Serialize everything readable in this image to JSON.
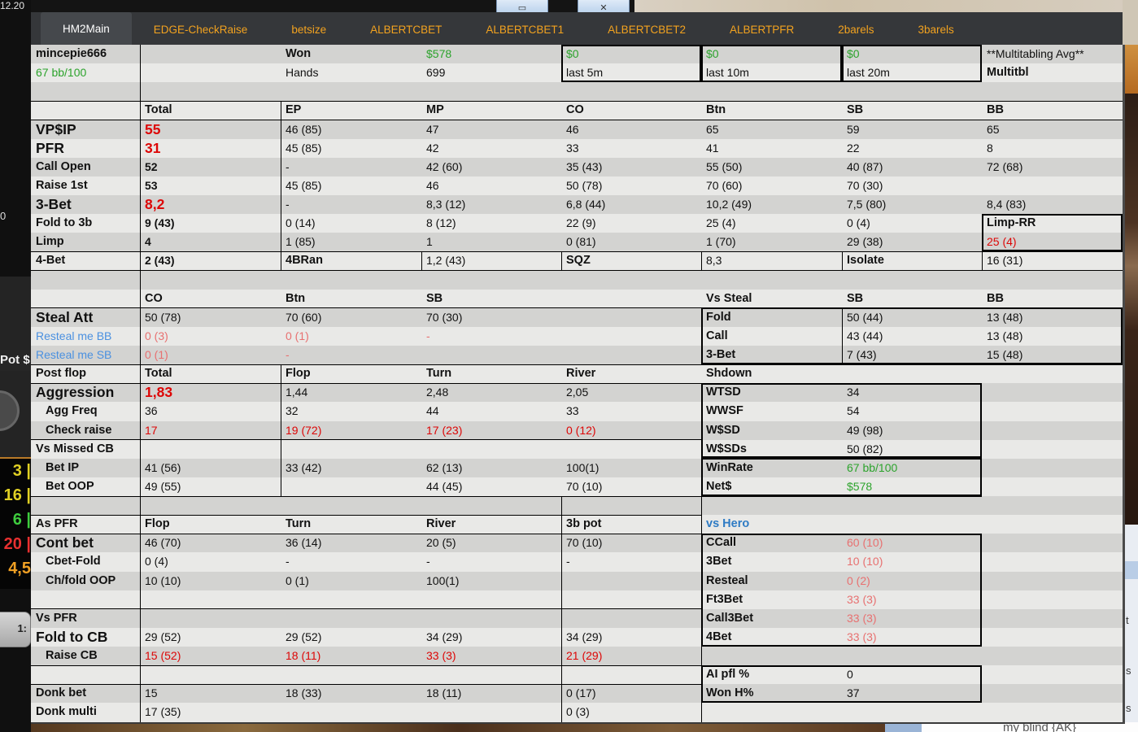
{
  "window": {
    "minimize_glyph": "▭",
    "close_glyph": "✕"
  },
  "colors": {
    "red": "#dd0606",
    "salmon": "#e87070",
    "green": "#2ca32c",
    "resteal_blue": "#4a90e0",
    "hero_blue": "#2e7bc4",
    "tab_orange": "#f2a21f",
    "tabbar_bg": "#35373a"
  },
  "tabs": [
    {
      "label": "HM2Main",
      "active": true
    },
    {
      "label": "EDGE-CheckRaise",
      "active": false
    },
    {
      "label": "betsize",
      "active": false
    },
    {
      "label": "ALBERTCBET",
      "active": false
    },
    {
      "label": "ALBERTCBET1",
      "active": false
    },
    {
      "label": "ALBERTCBET2",
      "active": false
    },
    {
      "label": "ALBERTPFR",
      "active": false
    },
    {
      "label": "2barels",
      "active": false
    },
    {
      "label": "3barels",
      "active": false
    }
  ],
  "background": {
    "clock": "12.20",
    "zero": "0",
    "pot_label": "Pot $",
    "stack_values": [
      {
        "text": "3 |",
        "color": "#e0d024"
      },
      {
        "text": "16 |",
        "color": "#e0d024"
      },
      {
        "text": "6 |",
        "color": "#3ecc3e"
      },
      {
        "text": "20 |",
        "color": "#e83030"
      },
      {
        "text": "4,5",
        "color": "#f0a024"
      }
    ],
    "seat_button": "1:",
    "note_text": "my blind {AK}",
    "side_letters": [
      "t",
      "s",
      "s"
    ]
  },
  "grid": {
    "columns": [
      134,
      173,
      173,
      172,
      172,
      173,
      172,
      173
    ],
    "rows": [
      {
        "n": "row-player-summary",
        "bg": "g",
        "cells": {
          "0": {
            "t": "mincepie666",
            "cls": "lbl",
            "n": "player-name"
          },
          "2": {
            "t": "Won",
            "cls": "lbl"
          },
          "3": {
            "t": "$578",
            "cls": "green",
            "n": "won-amount"
          },
          "4": {
            "t": "$0",
            "cls": "green",
            "n": "won-last-5m"
          },
          "5": {
            "t": "$0",
            "cls": "green",
            "n": "won-last-10m"
          },
          "6": {
            "t": "$0",
            "cls": "green",
            "n": "won-last-20m"
          },
          "7": {
            "t": "**Multitabling Avg**",
            "cls": "val"
          }
        }
      },
      {
        "n": "row-player-summary-2",
        "bg": "l",
        "cells": {
          "0": {
            "t": "67 bb/100",
            "cls": "green",
            "n": "winrate-bb100"
          },
          "2": {
            "t": "Hands",
            "cls": "val"
          },
          "3": {
            "t": "699",
            "cls": "val",
            "n": "hands-count"
          },
          "4": {
            "t": "last 5m",
            "cls": "val"
          },
          "5": {
            "t": "last 10m",
            "cls": "val"
          },
          "6": {
            "t": "last 20m",
            "cls": "val"
          },
          "7": {
            "t": "Multitbl",
            "cls": "lbl"
          }
        }
      },
      {
        "n": "row-empty",
        "bg": "g",
        "cells": {}
      },
      {
        "n": "row-position-headers",
        "bg": "l",
        "cells": {
          "1": {
            "t": "Total",
            "cls": "lbl"
          },
          "2": {
            "t": "EP",
            "cls": "lbl"
          },
          "3": {
            "t": "MP",
            "cls": "lbl"
          },
          "4": {
            "t": "CO",
            "cls": "lbl"
          },
          "5": {
            "t": "Btn",
            "cls": "lbl"
          },
          "6": {
            "t": "SB",
            "cls": "lbl"
          },
          "7": {
            "t": "BB",
            "cls": "lbl"
          }
        }
      },
      {
        "n": "row-vpip",
        "bg": "g",
        "cells": {
          "0": {
            "t": "VP$IP",
            "cls": "lbl lg"
          },
          "1": {
            "t": "55",
            "cls": "red b lg"
          },
          "2": {
            "t": "46 (85)"
          },
          "3": {
            "t": "47"
          },
          "4": {
            "t": "46"
          },
          "5": {
            "t": "65"
          },
          "6": {
            "t": "59"
          },
          "7": {
            "t": "65"
          }
        }
      },
      {
        "n": "row-pfr",
        "bg": "l",
        "cells": {
          "0": {
            "t": "PFR",
            "cls": "lbl lg"
          },
          "1": {
            "t": "31",
            "cls": "red b lg"
          },
          "2": {
            "t": "45 (85)"
          },
          "3": {
            "t": "42"
          },
          "4": {
            "t": "33"
          },
          "5": {
            "t": "41"
          },
          "6": {
            "t": "22"
          },
          "7": {
            "t": "8"
          }
        }
      },
      {
        "n": "row-call-open",
        "bg": "g",
        "cells": {
          "0": {
            "t": "Call Open",
            "cls": "lbl"
          },
          "1": {
            "t": "52",
            "cls": "b"
          },
          "2": {
            "t": "-"
          },
          "3": {
            "t": "42 (60)"
          },
          "4": {
            "t": "35 (43)"
          },
          "5": {
            "t": "55 (50)"
          },
          "6": {
            "t": "40 (87)"
          },
          "7": {
            "t": "72 (68)"
          }
        }
      },
      {
        "n": "row-raise-1st",
        "bg": "l",
        "cells": {
          "0": {
            "t": "Raise 1st",
            "cls": "lbl"
          },
          "1": {
            "t": "53",
            "cls": "b"
          },
          "2": {
            "t": "45 (85)"
          },
          "3": {
            "t": "46"
          },
          "4": {
            "t": "50 (78)"
          },
          "5": {
            "t": "70 (60)"
          },
          "6": {
            "t": "70 (30)"
          }
        }
      },
      {
        "n": "row-3bet",
        "bg": "g",
        "cells": {
          "0": {
            "t": "3-Bet",
            "cls": "lbl lg"
          },
          "1": {
            "t": "8,2",
            "cls": "red b lg"
          },
          "2": {
            "t": "-"
          },
          "3": {
            "t": "8,3 (12)"
          },
          "4": {
            "t": "6,8 (44)"
          },
          "5": {
            "t": "10,2 (49)"
          },
          "6": {
            "t": "7,5 (80)"
          },
          "7": {
            "t": "8,4 (83)"
          }
        }
      },
      {
        "n": "row-fold-to-3b",
        "bg": "l",
        "cells": {
          "0": {
            "t": "Fold to 3b",
            "cls": "lbl"
          },
          "1": {
            "t": "9 (43)",
            "cls": "b"
          },
          "2": {
            "t": "0 (14)"
          },
          "3": {
            "t": "8 (12)"
          },
          "4": {
            "t": "22 (9)"
          },
          "5": {
            "t": "25 (4)"
          },
          "6": {
            "t": "0 (4)"
          },
          "7": {
            "t": "Limp-RR",
            "cls": "lbl"
          }
        }
      },
      {
        "n": "row-limp",
        "bg": "g",
        "cells": {
          "0": {
            "t": "Limp",
            "cls": "lbl"
          },
          "1": {
            "t": "4",
            "cls": "b"
          },
          "2": {
            "t": "1 (85)"
          },
          "3": {
            "t": "1"
          },
          "4": {
            "t": "0 (81)"
          },
          "5": {
            "t": "1 (70)"
          },
          "6": {
            "t": "29 (38)"
          },
          "7": {
            "t": "25 (4)",
            "cls": "red"
          }
        }
      },
      {
        "n": "row-4bet",
        "bg": "l",
        "cells": {
          "0": {
            "t": "4-Bet",
            "cls": "lbl"
          },
          "1": {
            "t": "2 (43)",
            "cls": "b"
          },
          "2": {
            "t": "4BRan",
            "cls": "lbl"
          },
          "3": {
            "t": "1,2 (43)"
          },
          "4": {
            "t": "SQZ",
            "cls": "lbl"
          },
          "5": {
            "t": "8,3"
          },
          "6": {
            "t": "Isolate",
            "cls": "lbl"
          },
          "7": {
            "t": "16 (31)"
          }
        }
      },
      {
        "n": "row-empty",
        "bg": "g",
        "cells": {}
      },
      {
        "n": "row-steal-headers",
        "bg": "l",
        "cells": {
          "1": {
            "t": "CO",
            "cls": "lbl"
          },
          "2": {
            "t": "Btn",
            "cls": "lbl"
          },
          "3": {
            "t": "SB",
            "cls": "lbl"
          },
          "5": {
            "t": "Vs Steal",
            "cls": "lbl"
          },
          "6": {
            "t": "SB",
            "cls": "lbl"
          },
          "7": {
            "t": "BB",
            "cls": "lbl"
          }
        }
      },
      {
        "n": "row-steal-att",
        "bg": "g",
        "cells": {
          "0": {
            "t": "Steal Att",
            "cls": "lbl lg"
          },
          "1": {
            "t": "50 (78)"
          },
          "2": {
            "t": "70 (60)"
          },
          "3": {
            "t": "70 (30)"
          },
          "5": {
            "t": "Fold",
            "cls": "lbl"
          },
          "6": {
            "t": "50 (44)"
          },
          "7": {
            "t": "13 (48)"
          }
        }
      },
      {
        "n": "row-resteal-me-bb",
        "bg": "l",
        "cells": {
          "0": {
            "t": "Resteal me BB",
            "cls": "blue"
          },
          "1": {
            "t": "0 (3)",
            "cls": "salmon"
          },
          "2": {
            "t": "0 (1)",
            "cls": "salmon"
          },
          "3": {
            "t": "-",
            "cls": "salmon"
          },
          "5": {
            "t": "Call",
            "cls": "lbl"
          },
          "6": {
            "t": "43 (44)"
          },
          "7": {
            "t": "13 (48)"
          }
        }
      },
      {
        "n": "row-resteal-me-sb",
        "bg": "g",
        "cells": {
          "0": {
            "t": "Resteal me SB",
            "cls": "blue"
          },
          "1": {
            "t": "0 (1)",
            "cls": "salmon"
          },
          "2": {
            "t": "-",
            "cls": "salmon"
          },
          "5": {
            "t": "3-Bet",
            "cls": "lbl"
          },
          "6": {
            "t": "7 (43)"
          },
          "7": {
            "t": "15 (48)"
          }
        }
      },
      {
        "n": "row-postflop-headers",
        "bg": "l",
        "cells": {
          "0": {
            "t": "Post flop",
            "cls": "lbl"
          },
          "1": {
            "t": "Total",
            "cls": "lbl"
          },
          "2": {
            "t": "Flop",
            "cls": "lbl"
          },
          "3": {
            "t": "Turn",
            "cls": "lbl"
          },
          "4": {
            "t": "River",
            "cls": "lbl"
          },
          "5": {
            "t": "Shdown",
            "cls": "lbl"
          }
        }
      },
      {
        "n": "row-aggression",
        "bg": "g",
        "cells": {
          "0": {
            "t": "Aggression",
            "cls": "lbl lg"
          },
          "1": {
            "t": "1,83",
            "cls": "red b lg"
          },
          "2": {
            "t": "1,44"
          },
          "3": {
            "t": "2,48"
          },
          "4": {
            "t": "2,05"
          },
          "5": {
            "t": "WTSD",
            "cls": "lbl"
          },
          "6": {
            "t": "34"
          }
        }
      },
      {
        "n": "row-agg-freq",
        "bg": "l",
        "cells": {
          "0": {
            "t": "Agg Freq",
            "cls": "lbl ind"
          },
          "1": {
            "t": "36"
          },
          "2": {
            "t": "32"
          },
          "3": {
            "t": "44"
          },
          "4": {
            "t": "33"
          },
          "5": {
            "t": "WWSF",
            "cls": "lbl"
          },
          "6": {
            "t": "54"
          }
        }
      },
      {
        "n": "row-check-raise",
        "bg": "g",
        "cells": {
          "0": {
            "t": "Check raise",
            "cls": "lbl ind"
          },
          "1": {
            "t": "17",
            "cls": "red"
          },
          "2": {
            "t": "19 (72)",
            "cls": "red"
          },
          "3": {
            "t": "17 (23)",
            "cls": "red"
          },
          "4": {
            "t": "0 (12)",
            "cls": "red"
          },
          "5": {
            "t": "W$SD",
            "cls": "lbl"
          },
          "6": {
            "t": "49 (98)"
          }
        }
      },
      {
        "n": "row-vs-missed-cb",
        "bg": "l",
        "cells": {
          "0": {
            "t": "Vs Missed CB",
            "cls": "lbl"
          },
          "5": {
            "t": "W$SDs",
            "cls": "lbl"
          },
          "6": {
            "t": "50 (82)"
          }
        }
      },
      {
        "n": "row-bet-ip",
        "bg": "g",
        "cells": {
          "0": {
            "t": "Bet IP",
            "cls": "lbl ind"
          },
          "1": {
            "t": "41 (56)"
          },
          "2": {
            "t": "33 (42)"
          },
          "3": {
            "t": "62 (13)"
          },
          "4": {
            "t": "100(1)"
          },
          "5": {
            "t": "WinRate",
            "cls": "lbl"
          },
          "6": {
            "t": "67 bb/100",
            "cls": "green"
          }
        }
      },
      {
        "n": "row-bet-oop",
        "bg": "l",
        "cells": {
          "0": {
            "t": "Bet OOP",
            "cls": "lbl ind"
          },
          "1": {
            "t": "49 (55)"
          },
          "3": {
            "t": "44 (45)"
          },
          "4": {
            "t": "70 (10)"
          },
          "5": {
            "t": "Net$",
            "cls": "lbl"
          },
          "6": {
            "t": "$578",
            "cls": "green"
          }
        }
      },
      {
        "n": "row-empty",
        "bg": "g",
        "cells": {}
      },
      {
        "n": "row-as-pfr-headers",
        "bg": "l",
        "cells": {
          "0": {
            "t": "As PFR",
            "cls": "lbl"
          },
          "1": {
            "t": "Flop",
            "cls": "lbl"
          },
          "2": {
            "t": "Turn",
            "cls": "lbl"
          },
          "3": {
            "t": "River",
            "cls": "lbl"
          },
          "4": {
            "t": "3b pot",
            "cls": "lbl"
          },
          "5": {
            "t": "vs Hero",
            "cls": "blueb"
          }
        }
      },
      {
        "n": "row-cont-bet",
        "bg": "g",
        "cells": {
          "0": {
            "t": "Cont bet",
            "cls": "lbl lg"
          },
          "1": {
            "t": "46 (70)"
          },
          "2": {
            "t": "36 (14)"
          },
          "3": {
            "t": "20 (5)"
          },
          "4": {
            "t": "70 (10)"
          },
          "5": {
            "t": "CCall",
            "cls": "lbl"
          },
          "6": {
            "t": "60 (10)",
            "cls": "salmon"
          }
        }
      },
      {
        "n": "row-cbet-fold",
        "bg": "l",
        "cells": {
          "0": {
            "t": "Cbet-Fold",
            "cls": "lbl ind"
          },
          "1": {
            "t": "0 (4)"
          },
          "2": {
            "t": "-"
          },
          "3": {
            "t": "-"
          },
          "4": {
            "t": "-"
          },
          "5": {
            "t": "3Bet",
            "cls": "lbl"
          },
          "6": {
            "t": "10 (10)",
            "cls": "salmon"
          }
        }
      },
      {
        "n": "row-ch-fold-oop",
        "bg": "g",
        "cells": {
          "0": {
            "t": "Ch/fold OOP",
            "cls": "lbl ind"
          },
          "1": {
            "t": "10 (10)"
          },
          "2": {
            "t": "0 (1)"
          },
          "3": {
            "t": "100(1)"
          },
          "5": {
            "t": "Resteal",
            "cls": "lbl"
          },
          "6": {
            "t": "0 (2)",
            "cls": "salmon"
          }
        }
      },
      {
        "n": "row-ft3bet",
        "bg": "l",
        "cells": {
          "5": {
            "t": "Ft3Bet",
            "cls": "lbl"
          },
          "6": {
            "t": "33 (3)",
            "cls": "salmon"
          }
        }
      },
      {
        "n": "row-vs-pfr",
        "bg": "g",
        "cells": {
          "0": {
            "t": "Vs PFR",
            "cls": "lbl"
          },
          "5": {
            "t": "Call3Bet",
            "cls": "lbl"
          },
          "6": {
            "t": "33 (3)",
            "cls": "salmon"
          }
        }
      },
      {
        "n": "row-fold-to-cb",
        "bg": "l",
        "cells": {
          "0": {
            "t": "Fold to CB",
            "cls": "lbl lg"
          },
          "1": {
            "t": "29 (52)"
          },
          "2": {
            "t": "29 (52)"
          },
          "3": {
            "t": "34 (29)"
          },
          "4": {
            "t": "34 (29)"
          },
          "5": {
            "t": "4Bet",
            "cls": "lbl"
          },
          "6": {
            "t": "33 (3)",
            "cls": "salmon"
          }
        }
      },
      {
        "n": "row-raise-cb",
        "bg": "g",
        "cells": {
          "0": {
            "t": "Raise CB",
            "cls": "lbl ind"
          },
          "1": {
            "t": "15 (52)",
            "cls": "red"
          },
          "2": {
            "t": "18 (11)",
            "cls": "red"
          },
          "3": {
            "t": "33 (3)",
            "cls": "red"
          },
          "4": {
            "t": "21 (29)",
            "cls": "red"
          }
        }
      },
      {
        "n": "row-ai-pfl",
        "bg": "l",
        "cells": {
          "5": {
            "t": "AI pfl %",
            "cls": "lbl"
          },
          "6": {
            "t": "0"
          }
        }
      },
      {
        "n": "row-donk-bet",
        "bg": "g",
        "cells": {
          "0": {
            "t": "Donk bet",
            "cls": "lbl"
          },
          "1": {
            "t": "15"
          },
          "2": {
            "t": "18 (33)"
          },
          "3": {
            "t": "18 (11)"
          },
          "4": {
            "t": "0 (17)"
          },
          "5": {
            "t": "Won H%",
            "cls": "lbl"
          },
          "6": {
            "t": "37"
          }
        }
      },
      {
        "n": "row-donk-multi",
        "bg": "l",
        "cells": {
          "0": {
            "t": "Donk multi",
            "cls": "lbl"
          },
          "1": {
            "t": "17 (35)"
          },
          "4": {
            "t": "0 (3)"
          }
        }
      }
    ]
  }
}
